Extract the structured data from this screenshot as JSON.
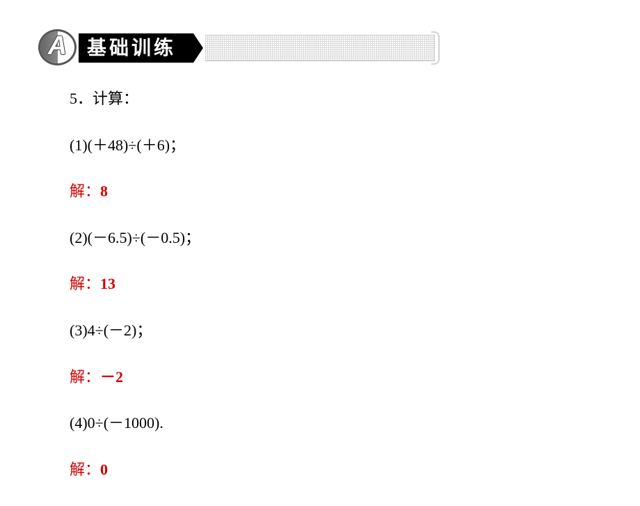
{
  "header": {
    "badge_letter": "A",
    "title": "基础训练"
  },
  "question": {
    "prompt": "5．计算：",
    "items": [
      {
        "q": "(1)(＋48)÷(＋6)；",
        "a_label": "解：",
        "a_value": "8"
      },
      {
        "q": "(2)(－6.5)÷(－0.5)；",
        "a_label": "解：",
        "a_value": "13"
      },
      {
        "q": "(3)4÷(－2)；",
        "a_label": "解：",
        "a_value": "－2"
      },
      {
        "q": "(4)0÷(－1000).",
        "a_label": "解：",
        "a_value": "0"
      }
    ]
  },
  "colors": {
    "answer": "#d40000",
    "text": "#000000",
    "background": "#ffffff"
  }
}
